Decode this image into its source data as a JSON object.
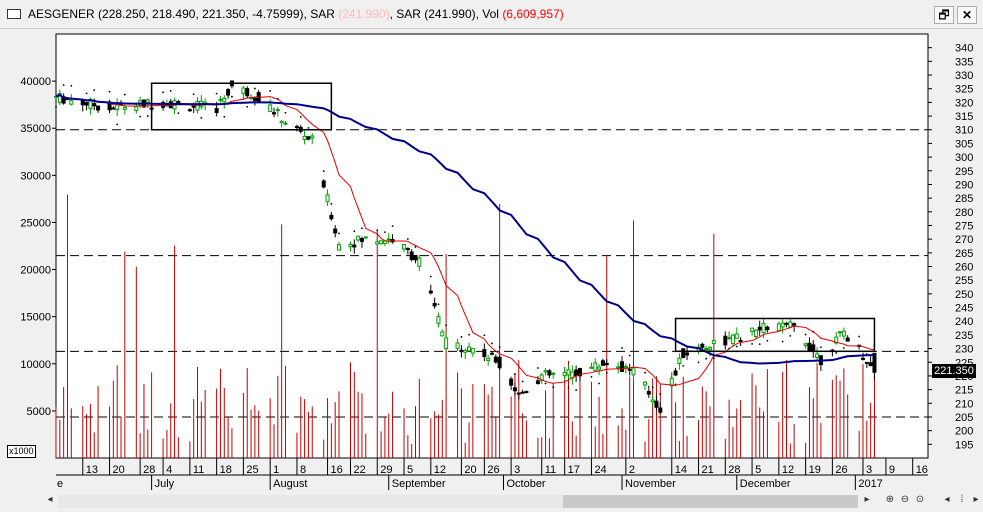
{
  "window": {
    "title_prefix": "AESGENER (228.250, 218.490, 221.350, -4.75999), SAR ",
    "sar1": "(241.990)",
    "title_mid": ", SAR (241.990), Vol ",
    "vol": "(6,609,957)",
    "restore_glyph": "🗗",
    "close_glyph": "✕"
  },
  "scale_label": "x1000",
  "last_price": "221.350",
  "colors": {
    "up": "#00a000",
    "down": "#000000",
    "volume": "#c00000",
    "ma_fast": "#e00000",
    "ma_slow": "#00008b",
    "sar": "#000000"
  },
  "chart_data": {
    "type": "candlestick",
    "price_axis": {
      "side": "right",
      "ylim": [
        190,
        345
      ],
      "ticks": [
        195,
        200,
        205,
        210,
        215,
        220,
        225,
        230,
        235,
        240,
        245,
        250,
        255,
        260,
        265,
        270,
        275,
        280,
        285,
        290,
        295,
        300,
        305,
        310,
        315,
        320,
        325,
        330,
        335,
        340
      ]
    },
    "volume_axis": {
      "side": "left",
      "unit_label": "x1000",
      "ylim": [
        0,
        45000
      ],
      "ticks": [
        5000,
        10000,
        15000,
        20000,
        25000,
        30000,
        35000,
        40000
      ]
    },
    "x_axis": {
      "day_ticks": [
        "13",
        "20",
        "28",
        "4",
        "11",
        "18",
        "25",
        "1",
        "8",
        "16",
        "22",
        "29",
        "5",
        "12",
        "20",
        "26",
        "3",
        "11",
        "17",
        "24",
        "2",
        "14",
        "21",
        "28",
        "5",
        "12",
        "19",
        "26",
        "3",
        "9",
        "16"
      ],
      "month_labels": [
        "July",
        "August",
        "September",
        "October",
        "November",
        "December",
        "2017"
      ],
      "left_cut_label": "e"
    },
    "horizontal_lines": [
      310,
      264,
      229,
      205
    ],
    "boxes": [
      {
        "from": "2016-07-01",
        "to": "2016-08-17",
        "top": 327,
        "bottom": 310
      },
      {
        "from": "2016-11-15",
        "to": "2017-01-06",
        "top": 241,
        "bottom": 229
      }
    ],
    "last": {
      "open": 228.25,
      "high": 228.25,
      "low": 218.49,
      "close": 221.35
    }
  }
}
